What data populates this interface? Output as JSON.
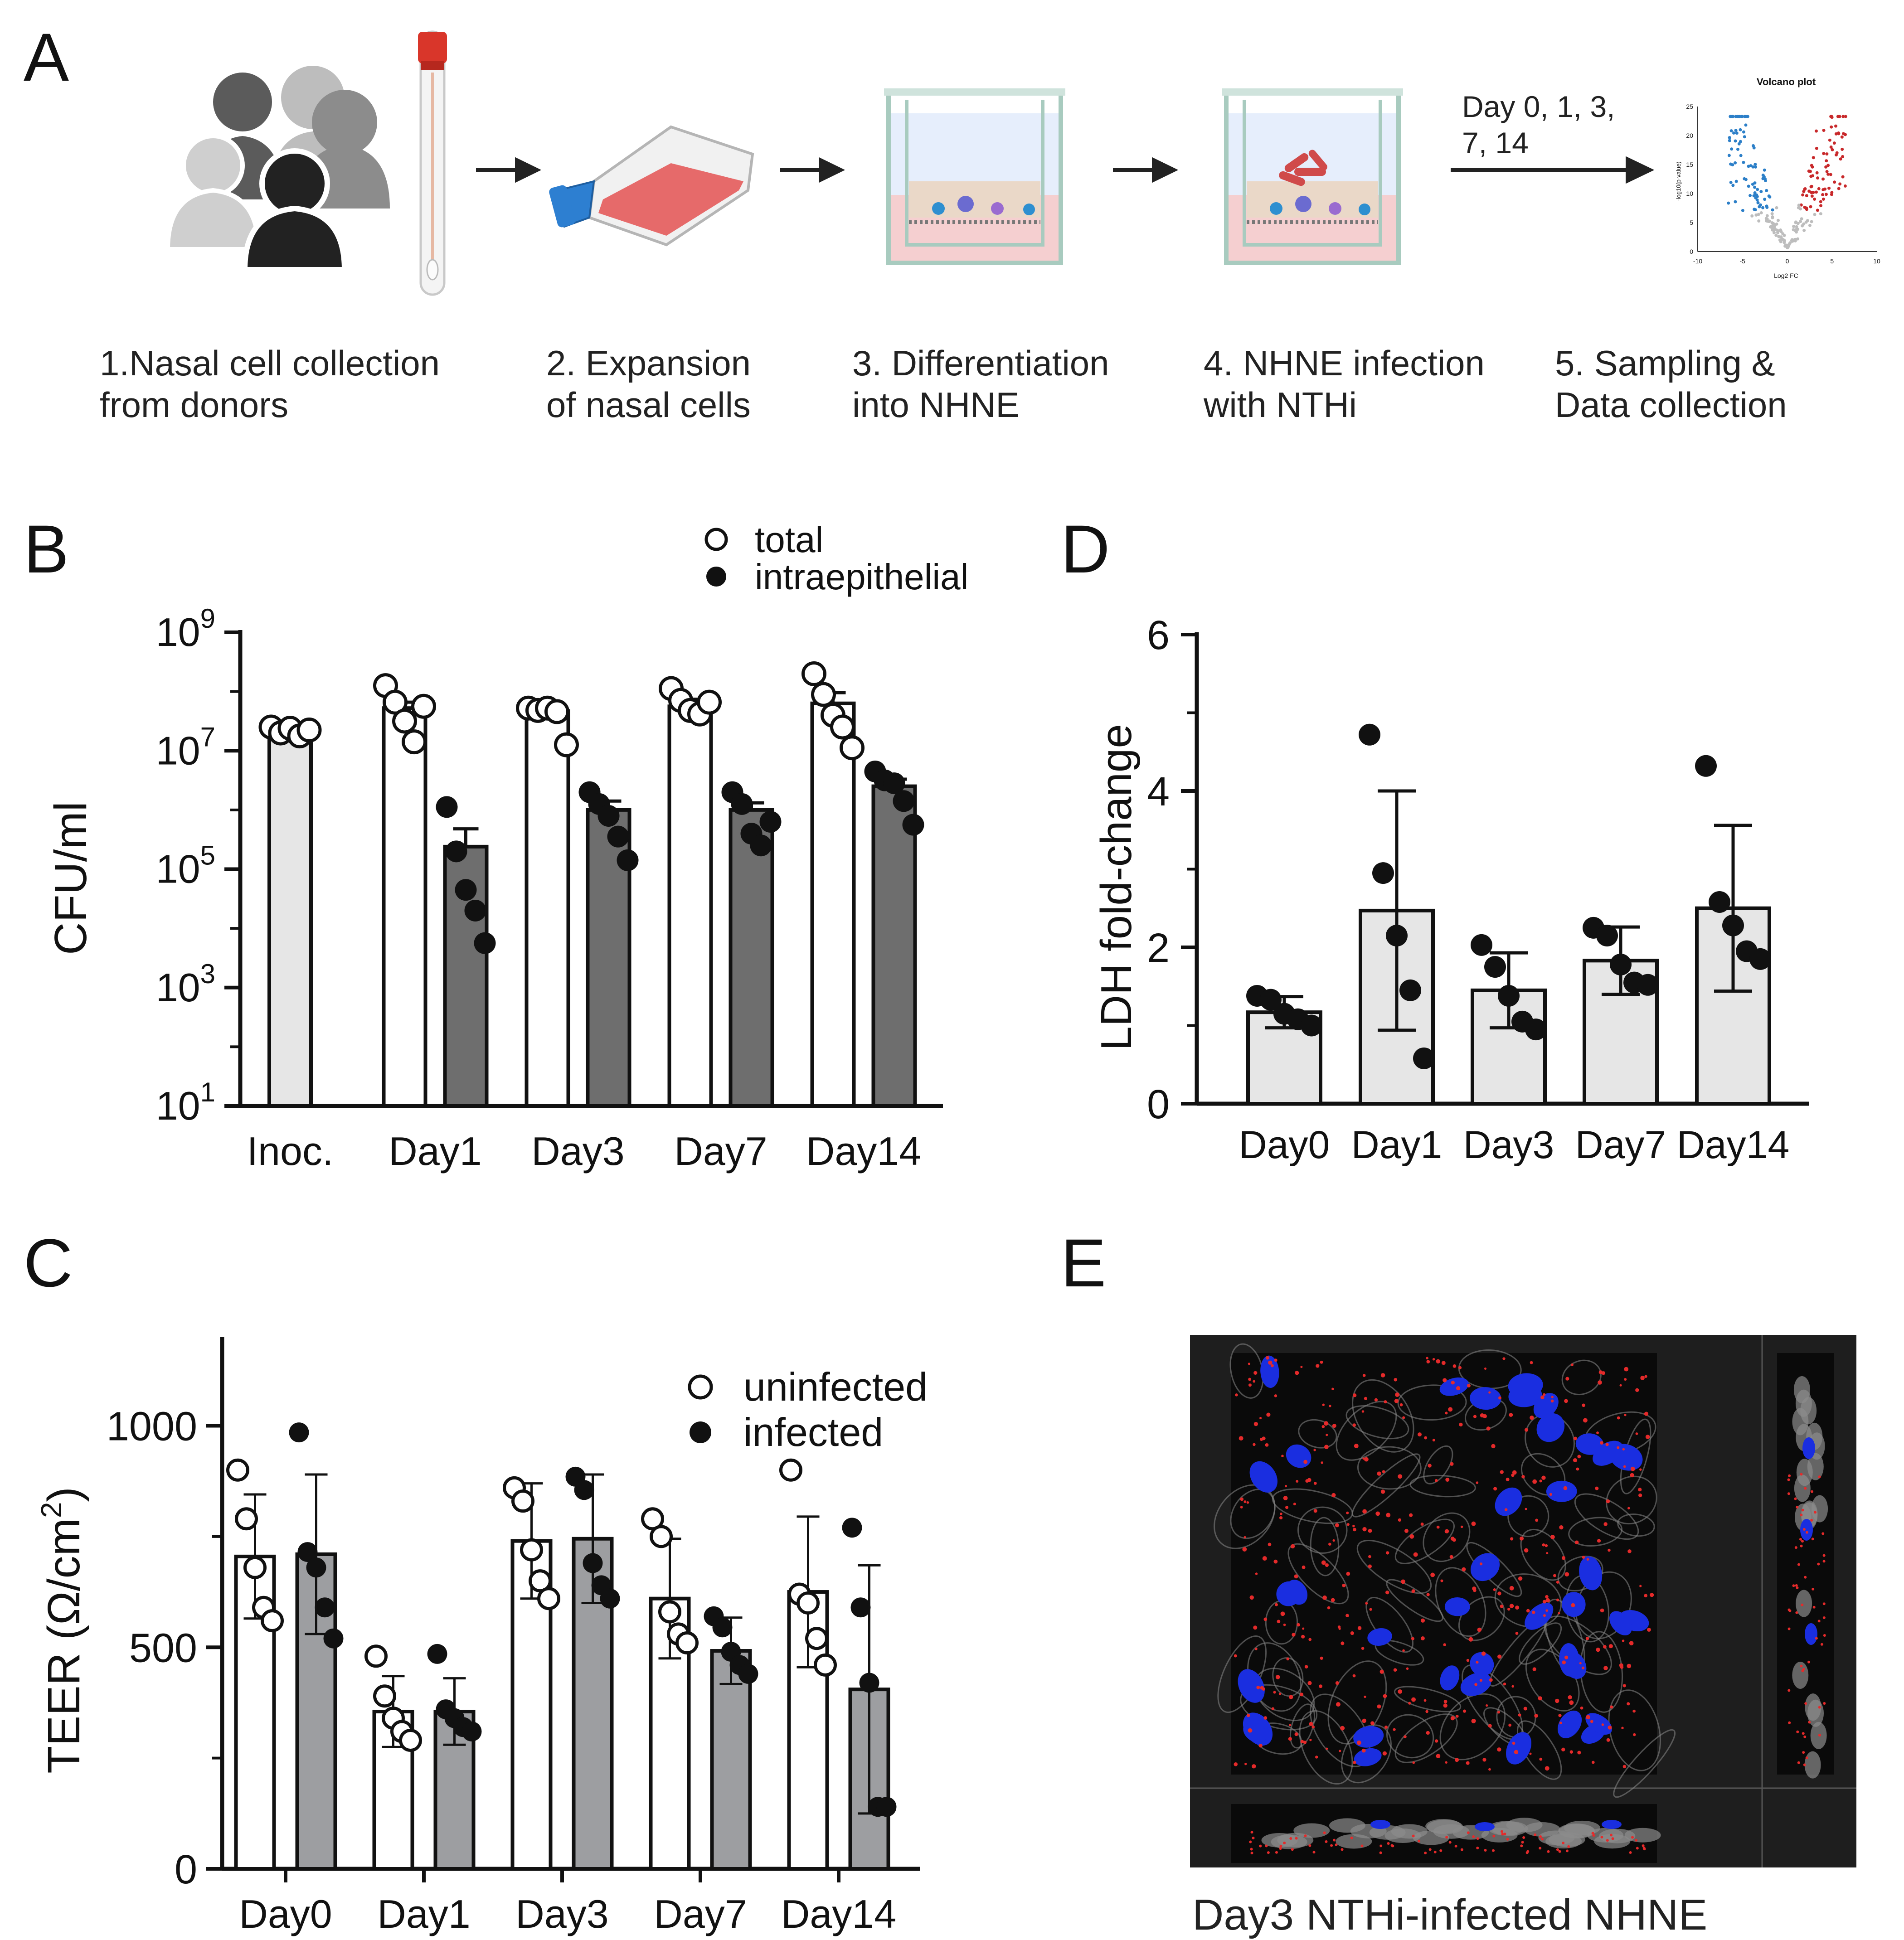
{
  "panels": {
    "A": {
      "letter": "A",
      "steps": [
        {
          "line1": "1.Nasal cell collection",
          "line2": "from donors"
        },
        {
          "line1": "2. Expansion",
          "line2": "of nasal cells"
        },
        {
          "line1": "3. Differentiation",
          "line2": "into NHNE"
        },
        {
          "line1": "4. NHNE infection",
          "line2": "with NTHi"
        },
        {
          "line1": "5. Sampling &",
          "line2": "Data collection"
        }
      ],
      "timepoints_line1": "Day 0, 1, 3,",
      "timepoints_line2": "7, 14",
      "volcano": {
        "title": "Volcano plot",
        "xlabel": "Log2 FC",
        "ylabel": "-log10(p-value)",
        "xticks": [
          "-10",
          "-5",
          "0",
          "5",
          "10"
        ],
        "yticks": [
          "0",
          "5",
          "10",
          "15",
          "20",
          "25"
        ]
      }
    },
    "B": {
      "letter": "B"
    },
    "C": {
      "letter": "C"
    },
    "D": {
      "letter": "D"
    },
    "E": {
      "letter": "E",
      "caption": "Day3 NTHi-infected NHNE"
    }
  },
  "chart_data": [
    {
      "id": "B",
      "type": "bar",
      "scale": "log10",
      "ylabel": "CFU/ml",
      "ylim_exp": [
        1,
        9
      ],
      "yticks": [
        {
          "base": "10",
          "exp": "9"
        },
        {
          "base": "10",
          "exp": "7"
        },
        {
          "base": "10",
          "exp": "5"
        },
        {
          "base": "10",
          "exp": "3"
        },
        {
          "base": "10",
          "exp": "1"
        }
      ],
      "categories": [
        "Inoc.",
        "Day1",
        "Day3",
        "Day7",
        "Day14"
      ],
      "legend": [
        {
          "name": "total",
          "marker": "open"
        },
        {
          "name": "intraepithelial",
          "marker": "filled"
        }
      ],
      "series": [
        {
          "name": "total",
          "fill": "#ffffff",
          "marker": "open",
          "log_means": [
            7.32,
            7.72,
            7.67,
            7.75,
            7.8
          ],
          "log_err": [
            0,
            0.1,
            0.05,
            0.12,
            0.18
          ],
          "log_points": [
            [
              7.4,
              7.3,
              7.38,
              7.25,
              7.35
            ],
            [
              8.1,
              7.82,
              7.5,
              7.15,
              7.75
            ],
            [
              7.72,
              7.68,
              7.72,
              7.66,
              7.1
            ],
            [
              8.05,
              7.85,
              7.68,
              7.62,
              7.82
            ],
            [
              8.3,
              7.95,
              7.6,
              7.4,
              7.05
            ]
          ]
        },
        {
          "name": "intraepithelial",
          "fill": "#6e6e6e",
          "marker": "filled",
          "log_means": [
            null,
            5.38,
            6.0,
            6.0,
            6.4
          ],
          "log_err": [
            0,
            0.3,
            0.15,
            0.12,
            0.12
          ],
          "log_points": [
            [],
            [
              6.05,
              5.3,
              4.65,
              4.3,
              3.75
            ],
            [
              6.3,
              6.1,
              5.9,
              5.55,
              5.15
            ],
            [
              6.3,
              6.1,
              5.6,
              5.4,
              5.8
            ],
            [
              6.65,
              6.5,
              6.45,
              6.15,
              5.75
            ]
          ]
        }
      ]
    },
    {
      "id": "C",
      "type": "bar",
      "ylabel_main": "TEER (Ω/cm",
      "ylabel_sup": "2",
      "ylabel_end": ")",
      "ylim": [
        0,
        1200
      ],
      "yticks": [
        "0",
        "500",
        "1000"
      ],
      "ytick_values": [
        0,
        500,
        1000
      ],
      "categories": [
        "Day0",
        "Day1",
        "Day3",
        "Day7",
        "Day14"
      ],
      "legend": [
        {
          "name": "uninfected",
          "marker": "open"
        },
        {
          "name": "infected",
          "marker": "filled"
        }
      ],
      "series": [
        {
          "name": "uninfected",
          "fill": "#ffffff",
          "marker": "open",
          "values": [
            705,
            355,
            740,
            610,
            625
          ],
          "sd": [
            140,
            80,
            130,
            135,
            170
          ],
          "points": [
            [
              900,
              790,
              680,
              590,
              560
            ],
            [
              480,
              390,
              340,
              310,
              290
            ],
            [
              860,
              830,
              720,
              650,
              610
            ],
            [
              790,
              750,
              580,
              530,
              510
            ],
            [
              900,
              620,
              600,
              520,
              460
            ]
          ]
        },
        {
          "name": "infected",
          "fill": "#9d9ea1",
          "marker": "filled",
          "values": [
            710,
            355,
            745,
            492,
            405
          ],
          "sd": [
            180,
            75,
            145,
            75,
            280
          ],
          "points": [
            [
              985,
              715,
              680,
              590,
              520
            ],
            [
              485,
              360,
              340,
              320,
              310
            ],
            [
              885,
              855,
              690,
              640,
              610
            ],
            [
              570,
              545,
              490,
              460,
              440
            ],
            [
              770,
              590,
              420,
              140,
              140
            ]
          ]
        }
      ]
    },
    {
      "id": "D",
      "type": "bar",
      "ylabel": "LDH  fold-change",
      "ylim": [
        0,
        6
      ],
      "yticks": [
        "0",
        "2",
        "4",
        "6"
      ],
      "ytick_values": [
        0,
        2,
        4,
        6
      ],
      "categories": [
        "Day0",
        "Day1",
        "Day3",
        "Day7",
        "Day14"
      ],
      "series": [
        {
          "name": "LDH",
          "fill": "#e6e6e6",
          "marker": "filled",
          "values": [
            1.17,
            2.47,
            1.45,
            1.83,
            2.5
          ],
          "sd": [
            0.2,
            1.53,
            0.48,
            0.43,
            1.06
          ],
          "points": [
            [
              1.38,
              1.33,
              1.15,
              1.08,
              1.0
            ],
            [
              4.72,
              2.95,
              2.15,
              1.45,
              0.58
            ],
            [
              2.03,
              1.75,
              1.38,
              1.05,
              0.95
            ],
            [
              2.25,
              2.15,
              1.78,
              1.55,
              1.52
            ],
            [
              4.32,
              2.58,
              2.28,
              1.95,
              1.85
            ]
          ]
        }
      ]
    }
  ]
}
